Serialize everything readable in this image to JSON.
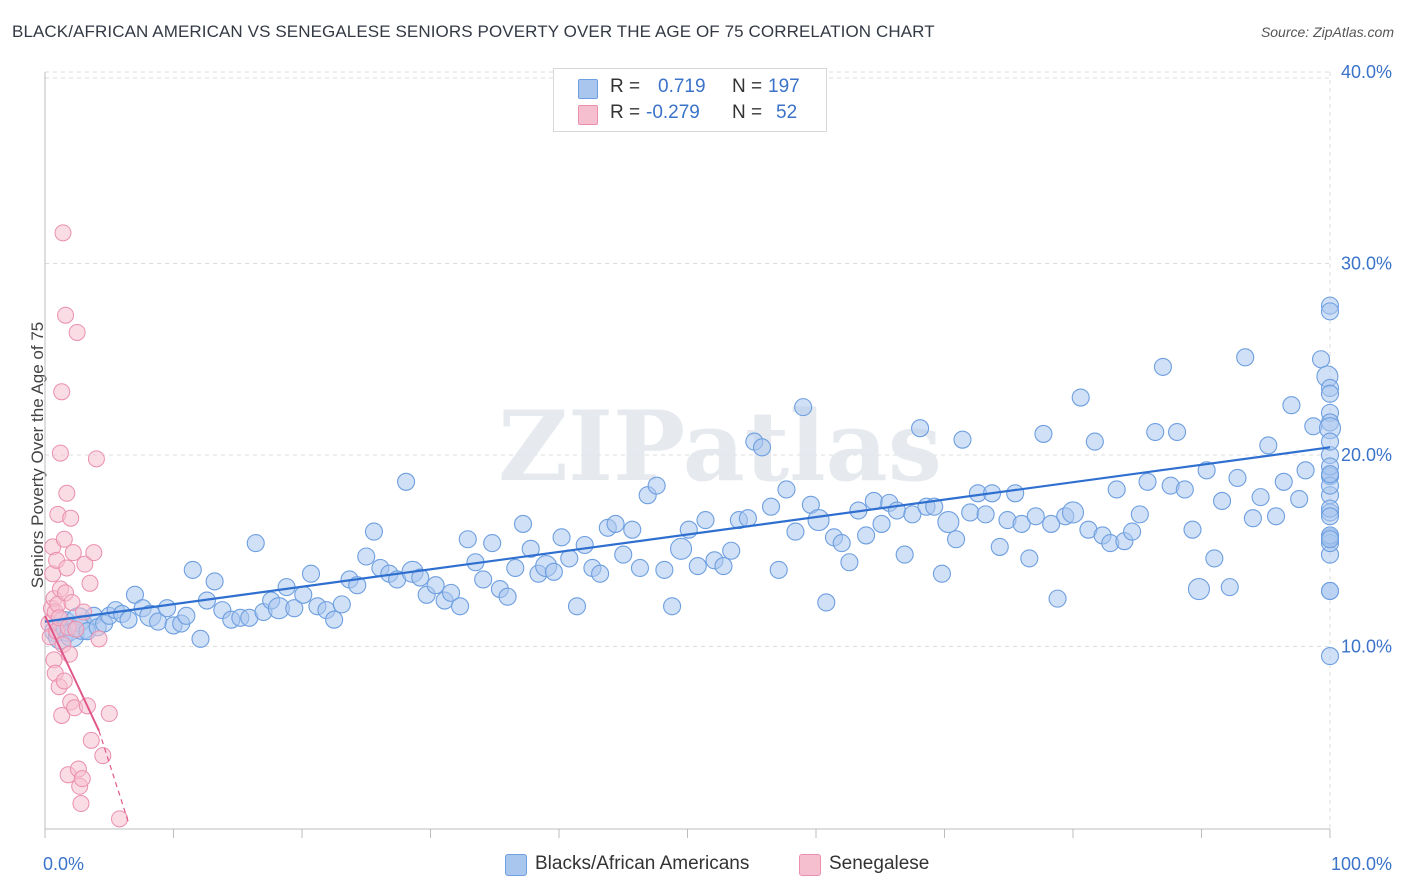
{
  "header": {
    "title": "BLACK/AFRICAN AMERICAN VS SENEGALESE SENIORS POVERTY OVER THE AGE OF 75 CORRELATION CHART",
    "source": "Source: ZipAtlas.com"
  },
  "legend_top": {
    "rows": [
      {
        "r_label": "R =",
        "r_value": "0.719",
        "n_label": "N =",
        "n_value": "197"
      },
      {
        "r_label": "R =",
        "r_value": "-0.279",
        "n_label": "N =",
        "n_value": "52"
      }
    ]
  },
  "legend_bottom": {
    "items": [
      {
        "label": "Blacks/African Americans"
      },
      {
        "label": "Senegalese"
      }
    ]
  },
  "colors": {
    "blue_fill": "#a9c6ef",
    "blue_stroke": "#6e9fe0",
    "blue_line": "#2f6fcf",
    "pink_fill": "#f6bfd0",
    "pink_stroke": "#ea8fae",
    "pink_line": "#e0578a",
    "tick_label": "#3a73c9",
    "grid": "#dcdcdc"
  },
  "chart_data": {
    "type": "scatter",
    "title": "BLACK/AFRICAN AMERICAN VS SENEGALESE SENIORS POVERTY OVER THE AGE OF 75 CORRELATION CHART",
    "xlabel": "",
    "ylabel": "Seniors Poverty Over the Age of 75",
    "xlim": [
      0,
      100
    ],
    "ylim": [
      0,
      41
    ],
    "x_tick_labels": [
      {
        "value": 0,
        "label": "0.0%"
      },
      {
        "value": 100,
        "label": "100.0%"
      }
    ],
    "y_tick_labels": [
      {
        "value": 10,
        "label": "10.0%"
      },
      {
        "value": 20,
        "label": "20.0%"
      },
      {
        "value": 30,
        "label": "30.0%"
      },
      {
        "value": 40,
        "label": "40.0%"
      }
    ],
    "grid": true,
    "watermark": "ZIPatlas",
    "legend_position": "top-center",
    "series": [
      {
        "name": "Blacks/African Americans",
        "r": 0.719,
        "n": 197,
        "trend": {
          "x": [
            0,
            100
          ],
          "y": [
            11.3,
            20.4
          ]
        },
        "points": [
          [
            0.8,
            10.8
          ],
          [
            1.2,
            10.5
          ],
          [
            1.5,
            11.2
          ],
          [
            1.8,
            10.9
          ],
          [
            2.1,
            10.6
          ],
          [
            2.6,
            11.4
          ],
          [
            2.9,
            11.0
          ],
          [
            3.3,
            10.8
          ],
          [
            3.8,
            11.6
          ],
          [
            4.1,
            11.0
          ],
          [
            4.6,
            11.2
          ],
          [
            5.0,
            11.6
          ],
          [
            5.5,
            11.9
          ],
          [
            6.0,
            11.7
          ],
          [
            6.5,
            11.4
          ],
          [
            7.0,
            12.7
          ],
          [
            7.6,
            12.0
          ],
          [
            8.2,
            11.6
          ],
          [
            8.8,
            11.3
          ],
          [
            9.5,
            12.0
          ],
          [
            10.0,
            11.1
          ],
          [
            10.6,
            11.2
          ],
          [
            11.0,
            11.6
          ],
          [
            11.5,
            14.0
          ],
          [
            12.1,
            10.4
          ],
          [
            12.6,
            12.4
          ],
          [
            13.2,
            13.4
          ],
          [
            13.8,
            11.9
          ],
          [
            14.5,
            11.4
          ],
          [
            15.2,
            11.5
          ],
          [
            15.9,
            11.5
          ],
          [
            16.4,
            15.4
          ],
          [
            17.0,
            11.8
          ],
          [
            17.6,
            12.4
          ],
          [
            18.2,
            12.0
          ],
          [
            18.8,
            13.1
          ],
          [
            19.4,
            12.0
          ],
          [
            20.1,
            12.7
          ],
          [
            20.7,
            13.8
          ],
          [
            21.2,
            12.1
          ],
          [
            21.9,
            11.9
          ],
          [
            22.5,
            11.4
          ],
          [
            23.1,
            12.2
          ],
          [
            23.7,
            13.5
          ],
          [
            24.3,
            13.2
          ],
          [
            25.0,
            14.7
          ],
          [
            25.6,
            16.0
          ],
          [
            26.1,
            14.1
          ],
          [
            26.8,
            13.8
          ],
          [
            27.4,
            13.5
          ],
          [
            28.1,
            18.6
          ],
          [
            28.6,
            13.9
          ],
          [
            29.2,
            13.6
          ],
          [
            29.7,
            12.7
          ],
          [
            30.4,
            13.2
          ],
          [
            31.1,
            12.4
          ],
          [
            31.6,
            12.8
          ],
          [
            32.3,
            12.1
          ],
          [
            32.9,
            15.6
          ],
          [
            33.5,
            14.4
          ],
          [
            34.1,
            13.5
          ],
          [
            34.8,
            15.4
          ],
          [
            35.4,
            13.0
          ],
          [
            36.0,
            12.6
          ],
          [
            36.6,
            14.1
          ],
          [
            37.2,
            16.4
          ],
          [
            37.8,
            15.1
          ],
          [
            38.4,
            13.8
          ],
          [
            39.0,
            14.2
          ],
          [
            39.6,
            13.9
          ],
          [
            40.2,
            15.7
          ],
          [
            40.8,
            14.6
          ],
          [
            41.4,
            12.1
          ],
          [
            42.0,
            15.3
          ],
          [
            42.6,
            14.1
          ],
          [
            43.2,
            13.8
          ],
          [
            43.8,
            16.2
          ],
          [
            44.4,
            16.4
          ],
          [
            45.0,
            14.8
          ],
          [
            45.7,
            16.1
          ],
          [
            46.3,
            14.1
          ],
          [
            46.9,
            17.9
          ],
          [
            47.6,
            18.4
          ],
          [
            48.2,
            14.0
          ],
          [
            48.8,
            12.1
          ],
          [
            49.5,
            15.1
          ],
          [
            50.1,
            16.1
          ],
          [
            50.8,
            14.2
          ],
          [
            51.4,
            16.6
          ],
          [
            52.1,
            14.5
          ],
          [
            52.8,
            14.2
          ],
          [
            53.4,
            15.0
          ],
          [
            54.0,
            16.6
          ],
          [
            54.7,
            16.7
          ],
          [
            55.2,
            20.7
          ],
          [
            55.8,
            20.4
          ],
          [
            56.5,
            17.3
          ],
          [
            57.1,
            14.0
          ],
          [
            57.7,
            18.2
          ],
          [
            58.4,
            16.0
          ],
          [
            59.0,
            22.5
          ],
          [
            59.6,
            17.4
          ],
          [
            60.2,
            16.6
          ],
          [
            60.8,
            12.3
          ],
          [
            61.4,
            15.7
          ],
          [
            62.0,
            15.4
          ],
          [
            62.6,
            14.4
          ],
          [
            63.3,
            17.1
          ],
          [
            63.9,
            15.8
          ],
          [
            64.5,
            17.6
          ],
          [
            65.1,
            16.4
          ],
          [
            65.7,
            17.5
          ],
          [
            66.3,
            17.1
          ],
          [
            66.9,
            14.8
          ],
          [
            67.5,
            16.9
          ],
          [
            68.1,
            21.4
          ],
          [
            68.6,
            17.3
          ],
          [
            69.2,
            17.3
          ],
          [
            69.8,
            13.8
          ],
          [
            70.3,
            16.5
          ],
          [
            70.9,
            15.6
          ],
          [
            71.4,
            20.8
          ],
          [
            72.0,
            17.0
          ],
          [
            72.6,
            18.0
          ],
          [
            73.2,
            16.9
          ],
          [
            73.7,
            18.0
          ],
          [
            74.3,
            15.2
          ],
          [
            74.9,
            16.6
          ],
          [
            75.5,
            18.0
          ],
          [
            76.0,
            16.4
          ],
          [
            76.6,
            14.6
          ],
          [
            77.1,
            16.8
          ],
          [
            77.7,
            21.1
          ],
          [
            78.3,
            16.4
          ],
          [
            78.8,
            12.5
          ],
          [
            79.4,
            16.8
          ],
          [
            80.0,
            17.0
          ],
          [
            80.6,
            23.0
          ],
          [
            81.2,
            16.1
          ],
          [
            81.7,
            20.7
          ],
          [
            82.3,
            15.8
          ],
          [
            82.9,
            15.4
          ],
          [
            83.4,
            18.2
          ],
          [
            84.0,
            15.5
          ],
          [
            84.6,
            16.0
          ],
          [
            85.2,
            16.9
          ],
          [
            85.8,
            18.6
          ],
          [
            86.4,
            21.2
          ],
          [
            87.0,
            24.6
          ],
          [
            87.6,
            18.4
          ],
          [
            88.1,
            21.2
          ],
          [
            88.7,
            18.2
          ],
          [
            89.3,
            16.1
          ],
          [
            89.8,
            13.0
          ],
          [
            90.4,
            19.2
          ],
          [
            91.0,
            14.6
          ],
          [
            91.6,
            17.6
          ],
          [
            92.2,
            13.1
          ],
          [
            92.8,
            18.8
          ],
          [
            93.4,
            25.1
          ],
          [
            94.0,
            16.7
          ],
          [
            94.6,
            17.8
          ],
          [
            95.2,
            20.5
          ],
          [
            95.8,
            16.8
          ],
          [
            96.4,
            18.6
          ],
          [
            97.0,
            22.6
          ],
          [
            97.6,
            17.7
          ],
          [
            98.1,
            19.2
          ],
          [
            98.7,
            21.5
          ],
          [
            99.3,
            25.0
          ],
          [
            99.8,
            24.1
          ],
          [
            100.0,
            23.5
          ],
          [
            100.0,
            12.9
          ],
          [
            100.0,
            17.9
          ],
          [
            100.0,
            18.9
          ],
          [
            100.0,
            14.8
          ],
          [
            100.0,
            15.7
          ],
          [
            100.0,
            12.9
          ],
          [
            100.0,
            22.2
          ],
          [
            100.0,
            20.0
          ],
          [
            100.0,
            17.0
          ],
          [
            100.0,
            21.7
          ],
          [
            100.0,
            15.4
          ],
          [
            100.0,
            17.2
          ],
          [
            100.0,
            18.9
          ],
          [
            100.0,
            18.4
          ],
          [
            100.0,
            15.8
          ],
          [
            100.0,
            21.4
          ],
          [
            100.0,
            9.5
          ],
          [
            100.0,
            27.8
          ],
          [
            100.0,
            20.7
          ],
          [
            100.0,
            23.2
          ],
          [
            100.0,
            27.5
          ],
          [
            100.0,
            15.6
          ],
          [
            100.0,
            16.8
          ],
          [
            100.0,
            19.4
          ],
          [
            100.0,
            19.0
          ]
        ]
      },
      {
        "name": "Senegalese",
        "r": -0.279,
        "n": 52,
        "trend": {
          "x": [
            0,
            4.2
          ],
          "y": [
            11.6,
            5.6
          ]
        },
        "trend_extension": {
          "x": [
            4.2,
            6.5
          ],
          "y": [
            5.6,
            0.8
          ]
        },
        "points": [
          [
            0.3,
            11.2
          ],
          [
            0.4,
            10.5
          ],
          [
            0.5,
            12.0
          ],
          [
            0.6,
            13.8
          ],
          [
            0.6,
            15.2
          ],
          [
            0.7,
            12.5
          ],
          [
            0.7,
            9.3
          ],
          [
            0.8,
            11.8
          ],
          [
            0.8,
            8.6
          ],
          [
            0.9,
            14.5
          ],
          [
            0.9,
            10.8
          ],
          [
            1.0,
            16.9
          ],
          [
            1.0,
            12.2
          ],
          [
            1.1,
            7.9
          ],
          [
            1.1,
            11.5
          ],
          [
            1.2,
            13.0
          ],
          [
            1.2,
            20.1
          ],
          [
            1.3,
            23.3
          ],
          [
            1.3,
            6.4
          ],
          [
            1.4,
            31.6
          ],
          [
            1.4,
            10.1
          ],
          [
            1.5,
            15.6
          ],
          [
            1.5,
            8.2
          ],
          [
            1.6,
            27.3
          ],
          [
            1.6,
            12.8
          ],
          [
            1.7,
            18.0
          ],
          [
            1.7,
            14.1
          ],
          [
            1.8,
            3.3
          ],
          [
            1.8,
            11.0
          ],
          [
            1.9,
            9.6
          ],
          [
            2.0,
            16.7
          ],
          [
            2.0,
            7.1
          ],
          [
            2.1,
            12.3
          ],
          [
            2.2,
            14.9
          ],
          [
            2.3,
            6.8
          ],
          [
            2.4,
            10.9
          ],
          [
            2.5,
            26.4
          ],
          [
            2.6,
            3.6
          ],
          [
            2.7,
            2.7
          ],
          [
            2.8,
            1.8
          ],
          [
            2.9,
            3.1
          ],
          [
            3.0,
            11.8
          ],
          [
            3.1,
            14.3
          ],
          [
            3.3,
            6.9
          ],
          [
            3.5,
            13.3
          ],
          [
            3.6,
            5.1
          ],
          [
            3.8,
            14.9
          ],
          [
            4.0,
            19.8
          ],
          [
            4.2,
            10.4
          ],
          [
            4.5,
            4.3
          ],
          [
            5.0,
            6.5
          ],
          [
            5.8,
            1.0
          ]
        ]
      }
    ]
  }
}
